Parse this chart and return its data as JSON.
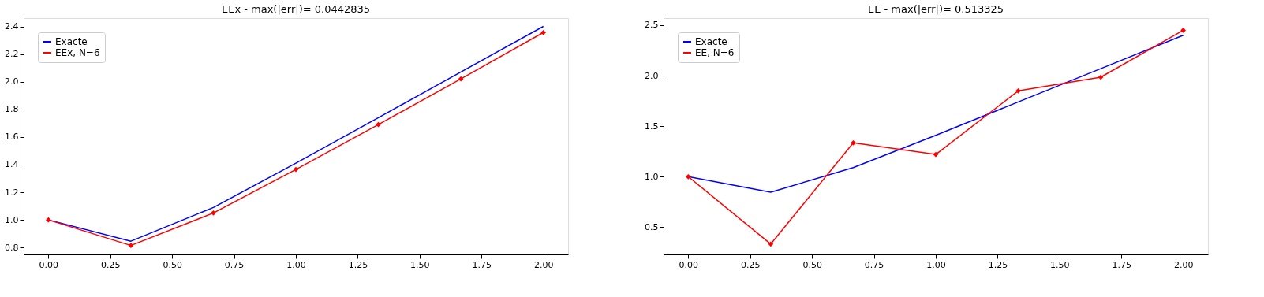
{
  "chart_data": [
    {
      "type": "line",
      "title": "EEx - max(|err|)= 0.0442835",
      "x": [
        0,
        0.3333,
        0.6667,
        1.0,
        1.3333,
        1.6667,
        2.0
      ],
      "series": [
        {
          "name": "Exacte",
          "color": "#0000ff",
          "marker": "none",
          "values": [
            1.0,
            0.846,
            1.09,
            1.41,
            1.74,
            2.07,
            2.4
          ]
        },
        {
          "name": "EEx, N=6",
          "color": "#ff0000",
          "marker": "diamond",
          "values": [
            1.0,
            0.815,
            1.05,
            1.365,
            1.69,
            2.02,
            2.356
          ]
        }
      ],
      "xlim": [
        -0.1,
        2.1
      ],
      "ylim": [
        0.75,
        2.46
      ],
      "xticks": [
        {
          "value": 0,
          "label": "0.00"
        },
        {
          "value": 0.25,
          "label": "0.25"
        },
        {
          "value": 0.5,
          "label": "0.50"
        },
        {
          "value": 0.75,
          "label": "0.75"
        },
        {
          "value": 1,
          "label": "1.00"
        },
        {
          "value": 1.25,
          "label": "1.25"
        },
        {
          "value": 1.5,
          "label": "1.50"
        },
        {
          "value": 1.75,
          "label": "1.75"
        },
        {
          "value": 2,
          "label": "2.00"
        }
      ],
      "yticks": [
        {
          "value": 0.8,
          "label": "0.8"
        },
        {
          "value": 1.0,
          "label": "1.0"
        },
        {
          "value": 1.2,
          "label": "1.2"
        },
        {
          "value": 1.4,
          "label": "1.4"
        },
        {
          "value": 1.6,
          "label": "1.6"
        },
        {
          "value": 1.8,
          "label": "1.8"
        },
        {
          "value": 2.0,
          "label": "2.0"
        },
        {
          "value": 2.2,
          "label": "2.2"
        },
        {
          "value": 2.4,
          "label": "2.4"
        }
      ],
      "legend": "top left",
      "grid": false
    },
    {
      "type": "line",
      "title": "EE - max(|err|)= 0.513325",
      "x": [
        0,
        0.3333,
        0.6667,
        1.0,
        1.3333,
        1.6667,
        2.0
      ],
      "series": [
        {
          "name": "Exacte",
          "color": "#0000ff",
          "marker": "none",
          "values": [
            1.0,
            0.846,
            1.09,
            1.41,
            1.74,
            2.07,
            2.4
          ]
        },
        {
          "name": "EE, N=6",
          "color": "#ff0000",
          "marker": "diamond",
          "values": [
            1.0,
            0.333,
            1.335,
            1.22,
            1.85,
            1.985,
            2.45
          ]
        }
      ],
      "xlim": [
        -0.1,
        2.1
      ],
      "ylim": [
        0.23,
        2.57
      ],
      "xticks": [
        {
          "value": 0,
          "label": "0.00"
        },
        {
          "value": 0.25,
          "label": "0.25"
        },
        {
          "value": 0.5,
          "label": "0.50"
        },
        {
          "value": 0.75,
          "label": "0.75"
        },
        {
          "value": 1,
          "label": "1.00"
        },
        {
          "value": 1.25,
          "label": "1.25"
        },
        {
          "value": 1.5,
          "label": "1.50"
        },
        {
          "value": 1.75,
          "label": "1.75"
        },
        {
          "value": 2,
          "label": "2.00"
        }
      ],
      "yticks": [
        {
          "value": 0.5,
          "label": "0.5"
        },
        {
          "value": 1.0,
          "label": "1.0"
        },
        {
          "value": 1.5,
          "label": "1.5"
        },
        {
          "value": 2.0,
          "label": "2.0"
        },
        {
          "value": 2.5,
          "label": "2.5"
        }
      ],
      "legend": "top left",
      "grid": false
    }
  ]
}
